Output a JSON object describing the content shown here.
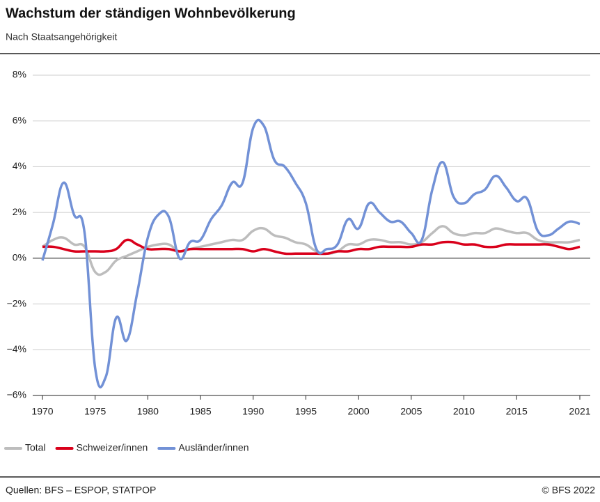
{
  "chart_data": {
    "type": "line",
    "title": "Wachstum der ständigen Wohnbevölkerung",
    "subtitle": "Nach Staatsangehörigkeit",
    "source": "Quellen: BFS – ESPOP, STATPOP",
    "credit": "© BFS 2022",
    "x": [
      1970,
      1971,
      1972,
      1973,
      1974,
      1975,
      1976,
      1977,
      1978,
      1979,
      1980,
      1981,
      1982,
      1983,
      1984,
      1985,
      1986,
      1987,
      1988,
      1989,
      1990,
      1991,
      1992,
      1993,
      1994,
      1995,
      1996,
      1997,
      1998,
      1999,
      2000,
      2001,
      2002,
      2003,
      2004,
      2005,
      2006,
      2007,
      2008,
      2009,
      2010,
      2011,
      2012,
      2013,
      2014,
      2015,
      2016,
      2017,
      2018,
      2019,
      2020,
      2021
    ],
    "xlim": [
      1970,
      2021
    ],
    "xticks": [
      1970,
      1975,
      1980,
      1985,
      1990,
      1995,
      2000,
      2005,
      2010,
      2015,
      2021
    ],
    "ylim": [
      -6,
      8
    ],
    "yticks": [
      {
        "value": -6,
        "label": "−6%"
      },
      {
        "value": -4,
        "label": "−4%"
      },
      {
        "value": -2,
        "label": "−2%"
      },
      {
        "value": 0,
        "label": "0%"
      },
      {
        "value": 2,
        "label": "2%"
      },
      {
        "value": 4,
        "label": "4%"
      },
      {
        "value": 6,
        "label": "6%"
      },
      {
        "value": 8,
        "label": "8%"
      }
    ],
    "grid": true,
    "legend": "bottom",
    "series": [
      {
        "name": "Total",
        "color": "#bdbdbd",
        "values": [
          0.5,
          0.8,
          0.9,
          0.6,
          0.5,
          -0.6,
          -0.6,
          -0.1,
          0.1,
          0.3,
          0.5,
          0.6,
          0.6,
          0.3,
          0.4,
          0.5,
          0.6,
          0.7,
          0.8,
          0.8,
          1.2,
          1.3,
          1.0,
          0.9,
          0.7,
          0.6,
          0.3,
          0.2,
          0.3,
          0.6,
          0.6,
          0.8,
          0.8,
          0.7,
          0.7,
          0.6,
          0.7,
          1.1,
          1.4,
          1.1,
          1.0,
          1.1,
          1.1,
          1.3,
          1.2,
          1.1,
          1.1,
          0.8,
          0.7,
          0.7,
          0.7,
          0.8
        ]
      },
      {
        "name": "Schweizer/innen",
        "color": "#d9001b",
        "values": [
          0.5,
          0.5,
          0.4,
          0.3,
          0.3,
          0.3,
          0.3,
          0.4,
          0.8,
          0.6,
          0.4,
          0.4,
          0.4,
          0.3,
          0.4,
          0.4,
          0.4,
          0.4,
          0.4,
          0.4,
          0.3,
          0.4,
          0.3,
          0.2,
          0.2,
          0.2,
          0.2,
          0.2,
          0.3,
          0.3,
          0.4,
          0.4,
          0.5,
          0.5,
          0.5,
          0.5,
          0.6,
          0.6,
          0.7,
          0.7,
          0.6,
          0.6,
          0.5,
          0.5,
          0.6,
          0.6,
          0.6,
          0.6,
          0.6,
          0.5,
          0.4,
          0.5
        ]
      },
      {
        "name": "Ausländer/innen",
        "color": "#7291d6",
        "values": [
          -0.1,
          1.5,
          3.3,
          1.9,
          1.1,
          -4.8,
          -5.2,
          -2.6,
          -3.6,
          -1.5,
          0.9,
          1.9,
          1.8,
          0.0,
          0.7,
          0.8,
          1.7,
          2.3,
          3.3,
          3.3,
          5.7,
          5.8,
          4.3,
          4.0,
          3.3,
          2.4,
          0.4,
          0.4,
          0.6,
          1.7,
          1.3,
          2.4,
          2.0,
          1.6,
          1.6,
          1.1,
          0.8,
          3.0,
          4.2,
          2.7,
          2.4,
          2.8,
          3.0,
          3.6,
          3.1,
          2.5,
          2.6,
          1.2,
          1.0,
          1.3,
          1.6,
          1.5
        ]
      }
    ]
  }
}
